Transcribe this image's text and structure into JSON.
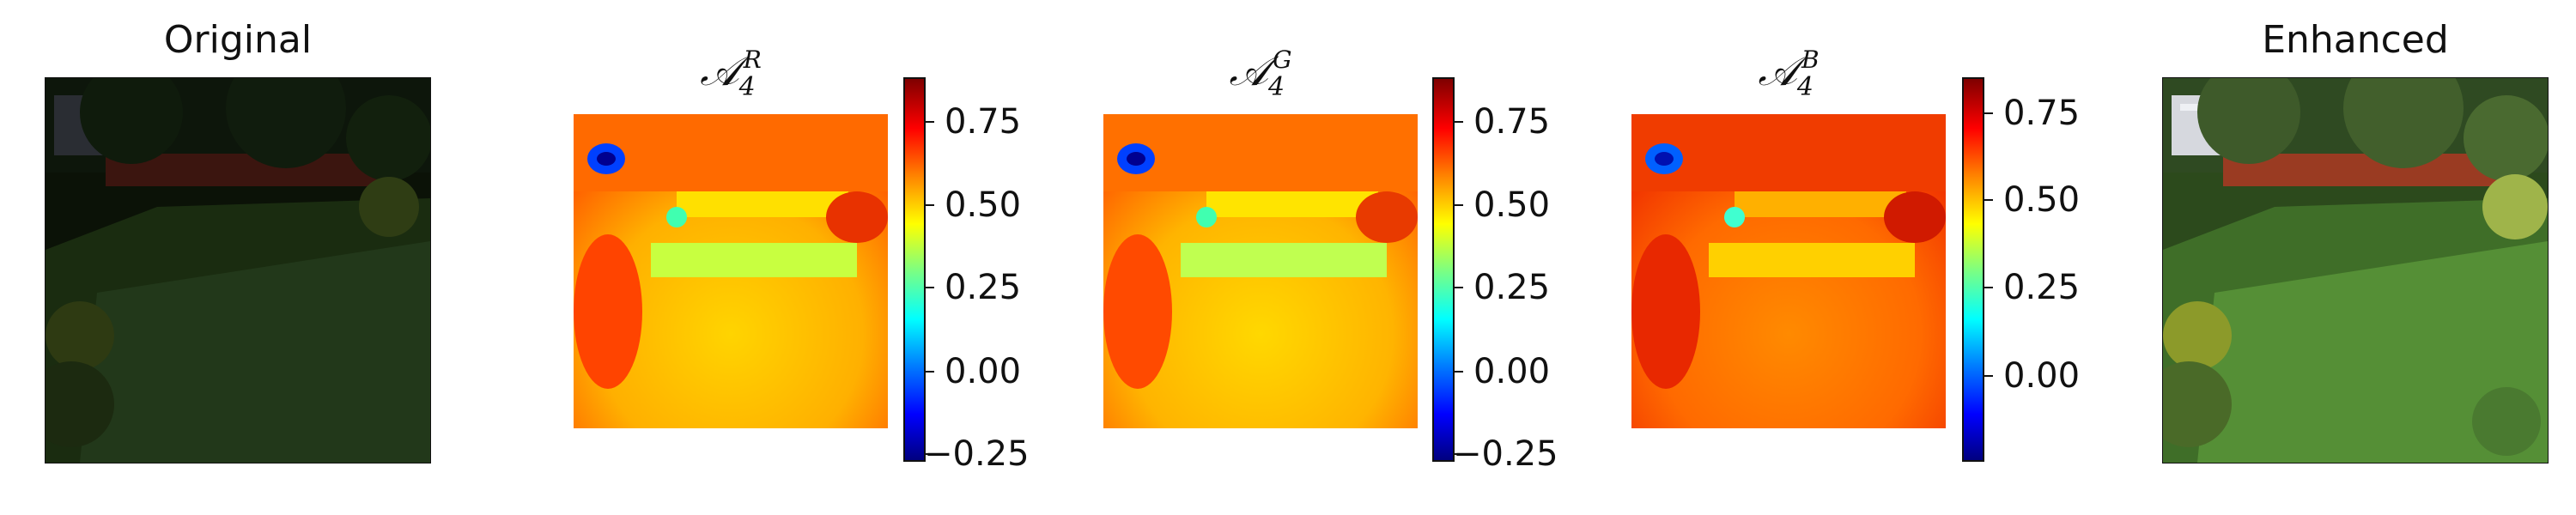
{
  "panels": {
    "original": {
      "title": "Original"
    },
    "enhanced": {
      "title": "Enhanced"
    },
    "maps": [
      {
        "symbol": "𝒜",
        "subscript": "4",
        "superscript": "R",
        "colorbar_ticks": [
          "0.75",
          "0.50",
          "0.25",
          "0.00",
          "−0.25"
        ]
      },
      {
        "symbol": "𝒜",
        "subscript": "4",
        "superscript": "G",
        "colorbar_ticks": [
          "0.75",
          "0.50",
          "0.25",
          "0.00",
          "−0.25"
        ]
      },
      {
        "symbol": "𝒜",
        "subscript": "4",
        "superscript": "B",
        "colorbar_ticks": [
          "0.75",
          "0.50",
          "0.25",
          "0.00"
        ]
      }
    ]
  },
  "colormap": "jet",
  "colors": {
    "grass_dark": "#1d2e12",
    "grass_bright": "#4f8a2e",
    "fence": "#8c2d1e",
    "trees": "#15240f"
  }
}
